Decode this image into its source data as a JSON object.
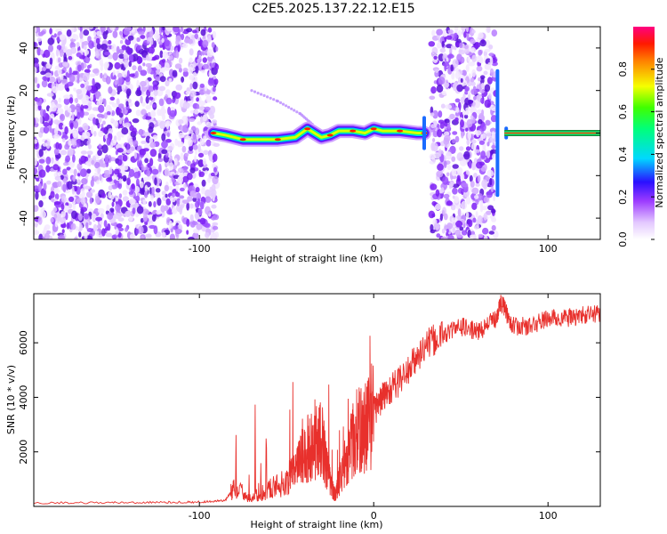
{
  "title": "C2E5.2025.137.22.12.E15",
  "chart_data": [
    {
      "type": "heatmap",
      "xlabel": "Height of straight line (km)",
      "ylabel": "Frequency (Hz)",
      "xlim": [
        -195,
        130
      ],
      "ylim": [
        -50,
        50
      ],
      "xticks": [
        -100,
        0,
        100
      ],
      "yticks": [
        -40,
        -20,
        0,
        20,
        40
      ],
      "colorbar": {
        "label": "Normalized spectral amplitude",
        "range": [
          0,
          1
        ],
        "ticks": [
          "0.0",
          "0.2",
          "0.4",
          "0.6",
          "0.8"
        ]
      },
      "noise_regions_km": [
        [
          -195,
          -90
        ],
        [
          33,
          70
        ]
      ],
      "ridge": {
        "x": [
          -92,
          -85,
          -75,
          -65,
          -55,
          -45,
          -38,
          -30,
          -25,
          -20,
          -12,
          -5,
          0,
          5,
          15,
          25,
          29
        ],
        "y": [
          0,
          -1,
          -3,
          -3,
          -3,
          -2,
          2,
          -2,
          -1,
          1,
          1,
          0,
          2,
          1,
          1,
          0,
          0
        ]
      },
      "faint_branch": {
        "x": [
          -70,
          -55,
          -42,
          -35
        ],
        "y": [
          20,
          15,
          9,
          4
        ]
      },
      "stable_line": {
        "x": [
          75,
          130
        ],
        "y": [
          0,
          0
        ]
      }
    },
    {
      "type": "line",
      "xlabel": "Height of straight line (km)",
      "ylabel": "SNR (10 * v/v)",
      "xlim": [
        -195,
        130
      ],
      "ylim": [
        0,
        7800
      ],
      "xticks": [
        -100,
        0,
        100
      ],
      "yticks": [
        2000,
        4000,
        6000
      ],
      "series": [
        {
          "color": "#e8302c",
          "x": [
            -195,
            -150,
            -120,
            -100,
            -85,
            -80,
            -70,
            -60,
            -50,
            -45,
            -40,
            -35,
            -30,
            -25,
            -22,
            -20,
            -15,
            -10,
            -5,
            0,
            5,
            10,
            20,
            30,
            40,
            50,
            60,
            70,
            73,
            80,
            90,
            100,
            110,
            120,
            130
          ],
          "y": [
            130,
            140,
            150,
            160,
            220,
            700,
            300,
            650,
            900,
            1400,
            1900,
            2300,
            2500,
            900,
            400,
            900,
            1900,
            2700,
            2900,
            3500,
            4000,
            4300,
            5000,
            5900,
            6300,
            6600,
            6400,
            6900,
            7500,
            6600,
            6600,
            6900,
            6900,
            7000,
            7100
          ]
        }
      ]
    }
  ]
}
